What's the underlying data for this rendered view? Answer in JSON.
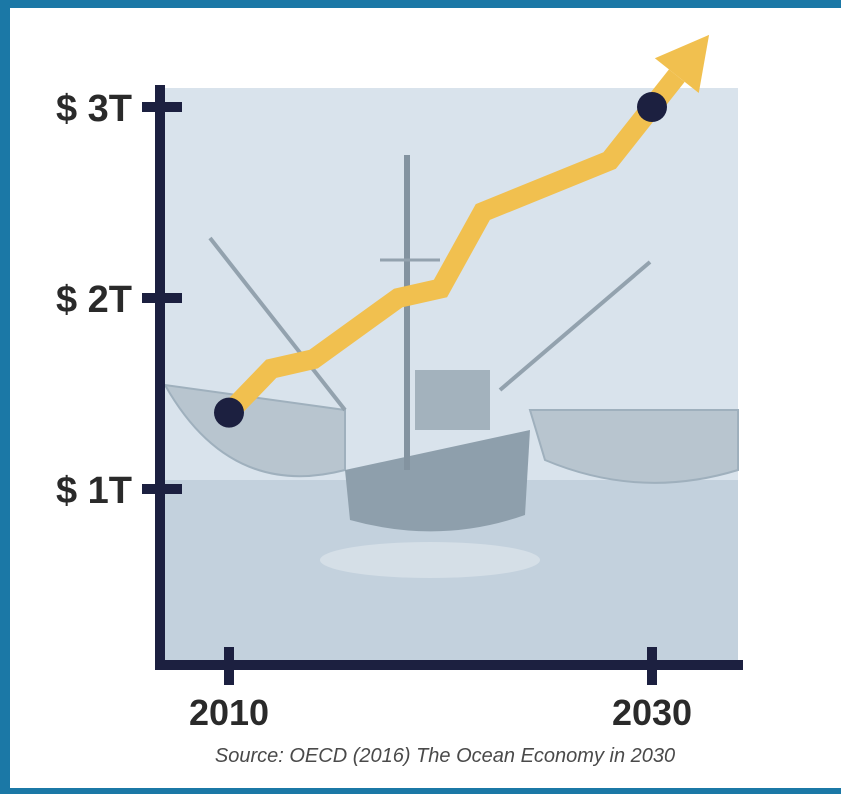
{
  "chart_data": {
    "type": "line",
    "x_ticks": [
      "2010",
      "2030"
    ],
    "y_ticks": [
      "$ 1T",
      "$ 2T",
      "$ 3T"
    ],
    "ylim": [
      0,
      3
    ],
    "series": [
      {
        "x": [
          2010,
          2012,
          2014,
          2018,
          2020,
          2022,
          2028,
          2030
        ],
        "y": [
          1.4,
          1.63,
          1.68,
          2.0,
          2.05,
          2.45,
          2.72,
          3.0
        ]
      }
    ],
    "endpoints_marked": true,
    "trend_arrow": true,
    "background_image": "fishing-trawler-photo",
    "source": "Source: OECD (2016) The Ocean Economy in 2030"
  },
  "colors": {
    "axis": "#1c2040",
    "line": "#f1c04f",
    "marker": "#1c2040",
    "photo_sky": "#d8e2ec",
    "photo_sea": "#b5c6d4",
    "frame_border": "#1b78a6"
  }
}
